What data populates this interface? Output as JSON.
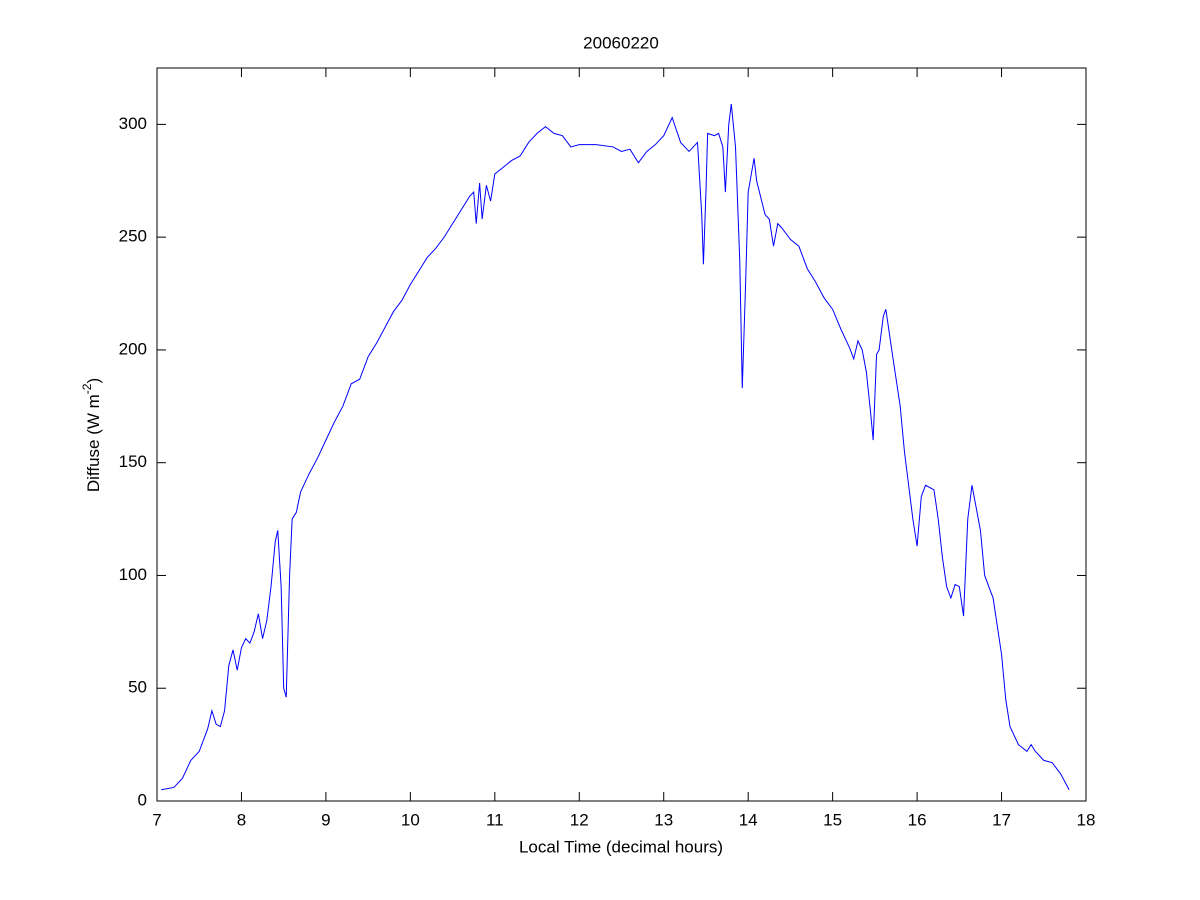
{
  "chart_data": {
    "type": "line",
    "title": "20060220",
    "xlabel": "Local Time (decimal hours)",
    "ylabel": {
      "text": "Diffuse (W m",
      "superscript": "-2",
      "suffix": ")"
    },
    "color": "#0000ff",
    "xlim": [
      7,
      18
    ],
    "xticks": [
      7,
      8,
      9,
      10,
      11,
      12,
      13,
      14,
      15,
      16,
      17,
      18
    ],
    "ylim": [
      0,
      325
    ],
    "yticks": [
      0,
      50,
      100,
      150,
      200,
      250,
      300
    ],
    "x": [
      7.05,
      7.2,
      7.3,
      7.4,
      7.5,
      7.6,
      7.65,
      7.7,
      7.75,
      7.8,
      7.85,
      7.9,
      7.95,
      8.0,
      8.05,
      8.1,
      8.15,
      8.2,
      8.25,
      8.3,
      8.35,
      8.4,
      8.43,
      8.47,
      8.5,
      8.53,
      8.57,
      8.6,
      8.65,
      8.7,
      8.8,
      8.9,
      9.0,
      9.1,
      9.2,
      9.3,
      9.4,
      9.5,
      9.6,
      9.7,
      9.8,
      9.9,
      10.0,
      10.1,
      10.2,
      10.3,
      10.4,
      10.5,
      10.6,
      10.7,
      10.75,
      10.78,
      10.82,
      10.85,
      10.9,
      10.95,
      11.0,
      11.1,
      11.2,
      11.3,
      11.4,
      11.5,
      11.6,
      11.7,
      11.8,
      11.9,
      12.0,
      12.2,
      12.4,
      12.5,
      12.6,
      12.7,
      12.8,
      12.9,
      13.0,
      13.1,
      13.2,
      13.3,
      13.4,
      13.45,
      13.47,
      13.5,
      13.52,
      13.6,
      13.65,
      13.7,
      13.73,
      13.77,
      13.8,
      13.85,
      13.9,
      13.93,
      13.97,
      14.0,
      14.07,
      14.1,
      14.2,
      14.25,
      14.3,
      14.35,
      14.4,
      14.5,
      14.6,
      14.7,
      14.8,
      14.9,
      15.0,
      15.1,
      15.2,
      15.25,
      15.3,
      15.35,
      15.4,
      15.45,
      15.48,
      15.52,
      15.55,
      15.6,
      15.63,
      15.7,
      15.8,
      15.85,
      15.9,
      15.95,
      16.0,
      16.05,
      16.1,
      16.2,
      16.25,
      16.3,
      16.35,
      16.4,
      16.45,
      16.5,
      16.55,
      16.6,
      16.65,
      16.7,
      16.75,
      16.8,
      16.9,
      17.0,
      17.05,
      17.1,
      17.2,
      17.3,
      17.35,
      17.4,
      17.5,
      17.6,
      17.7,
      17.8
    ],
    "values": [
      5,
      6,
      10,
      18,
      22,
      32,
      40,
      34,
      33,
      40,
      60,
      67,
      58,
      68,
      72,
      70,
      75,
      83,
      72,
      80,
      95,
      115,
      120,
      95,
      50,
      46,
      100,
      125,
      128,
      137,
      145,
      152,
      160,
      168,
      175,
      185,
      187,
      197,
      203,
      210,
      217,
      222,
      229,
      235,
      241,
      245,
      250,
      256,
      262,
      268,
      270,
      256,
      274,
      258,
      273,
      266,
      278,
      281,
      284,
      286,
      292,
      296,
      299,
      296,
      295,
      290,
      291,
      291,
      290,
      288,
      289,
      283,
      288,
      291,
      295,
      303,
      292,
      288,
      292,
      260,
      238,
      270,
      296,
      295,
      296,
      290,
      270,
      300,
      309,
      290,
      240,
      183,
      230,
      270,
      285,
      275,
      260,
      258,
      246,
      256,
      254,
      249,
      246,
      236,
      230,
      223,
      218,
      209,
      201,
      196,
      204,
      200,
      190,
      172,
      160,
      198,
      200,
      215,
      218,
      200,
      175,
      155,
      140,
      125,
      113,
      135,
      140,
      138,
      125,
      108,
      95,
      90,
      96,
      95,
      82,
      125,
      140,
      130,
      120,
      100,
      90,
      65,
      45,
      33,
      25,
      22,
      25,
      22,
      18,
      17,
      12,
      5
    ]
  }
}
